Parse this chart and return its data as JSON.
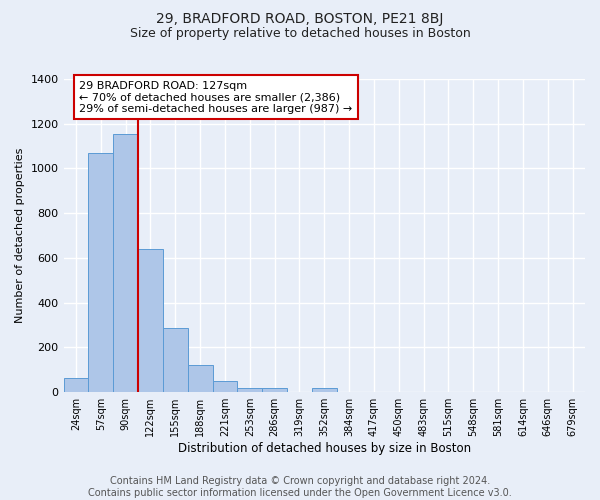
{
  "title": "29, BRADFORD ROAD, BOSTON, PE21 8BJ",
  "subtitle": "Size of property relative to detached houses in Boston",
  "xlabel": "Distribution of detached houses by size in Boston",
  "ylabel": "Number of detached properties",
  "bin_labels": [
    "24sqm",
    "57sqm",
    "90sqm",
    "122sqm",
    "155sqm",
    "188sqm",
    "221sqm",
    "253sqm",
    "286sqm",
    "319sqm",
    "352sqm",
    "384sqm",
    "417sqm",
    "450sqm",
    "483sqm",
    "515sqm",
    "548sqm",
    "581sqm",
    "614sqm",
    "646sqm",
    "679sqm"
  ],
  "bar_values": [
    65,
    1070,
    1155,
    640,
    285,
    120,
    48,
    20,
    20,
    0,
    20,
    0,
    0,
    0,
    0,
    0,
    0,
    0,
    0,
    0,
    0
  ],
  "bar_color": "#aec6e8",
  "bar_edge_color": "#5b9bd5",
  "vline_x": 2.5,
  "vline_color": "#cc0000",
  "annotation_text": "29 BRADFORD ROAD: 127sqm\n← 70% of detached houses are smaller (2,386)\n29% of semi-detached houses are larger (987) →",
  "annotation_box_color": "#ffffff",
  "annotation_box_edge_color": "#cc0000",
  "ylim": [
    0,
    1400
  ],
  "yticks": [
    0,
    200,
    400,
    600,
    800,
    1000,
    1200,
    1400
  ],
  "footer_line1": "Contains HM Land Registry data © Crown copyright and database right 2024.",
  "footer_line2": "Contains public sector information licensed under the Open Government Licence v3.0.",
  "background_color": "#e8eef8",
  "plot_background": "#e8eef8",
  "grid_color": "#ffffff",
  "title_fontsize": 10,
  "subtitle_fontsize": 9,
  "xlabel_fontsize": 8.5,
  "ylabel_fontsize": 8,
  "annotation_fontsize": 8,
  "footer_fontsize": 7
}
